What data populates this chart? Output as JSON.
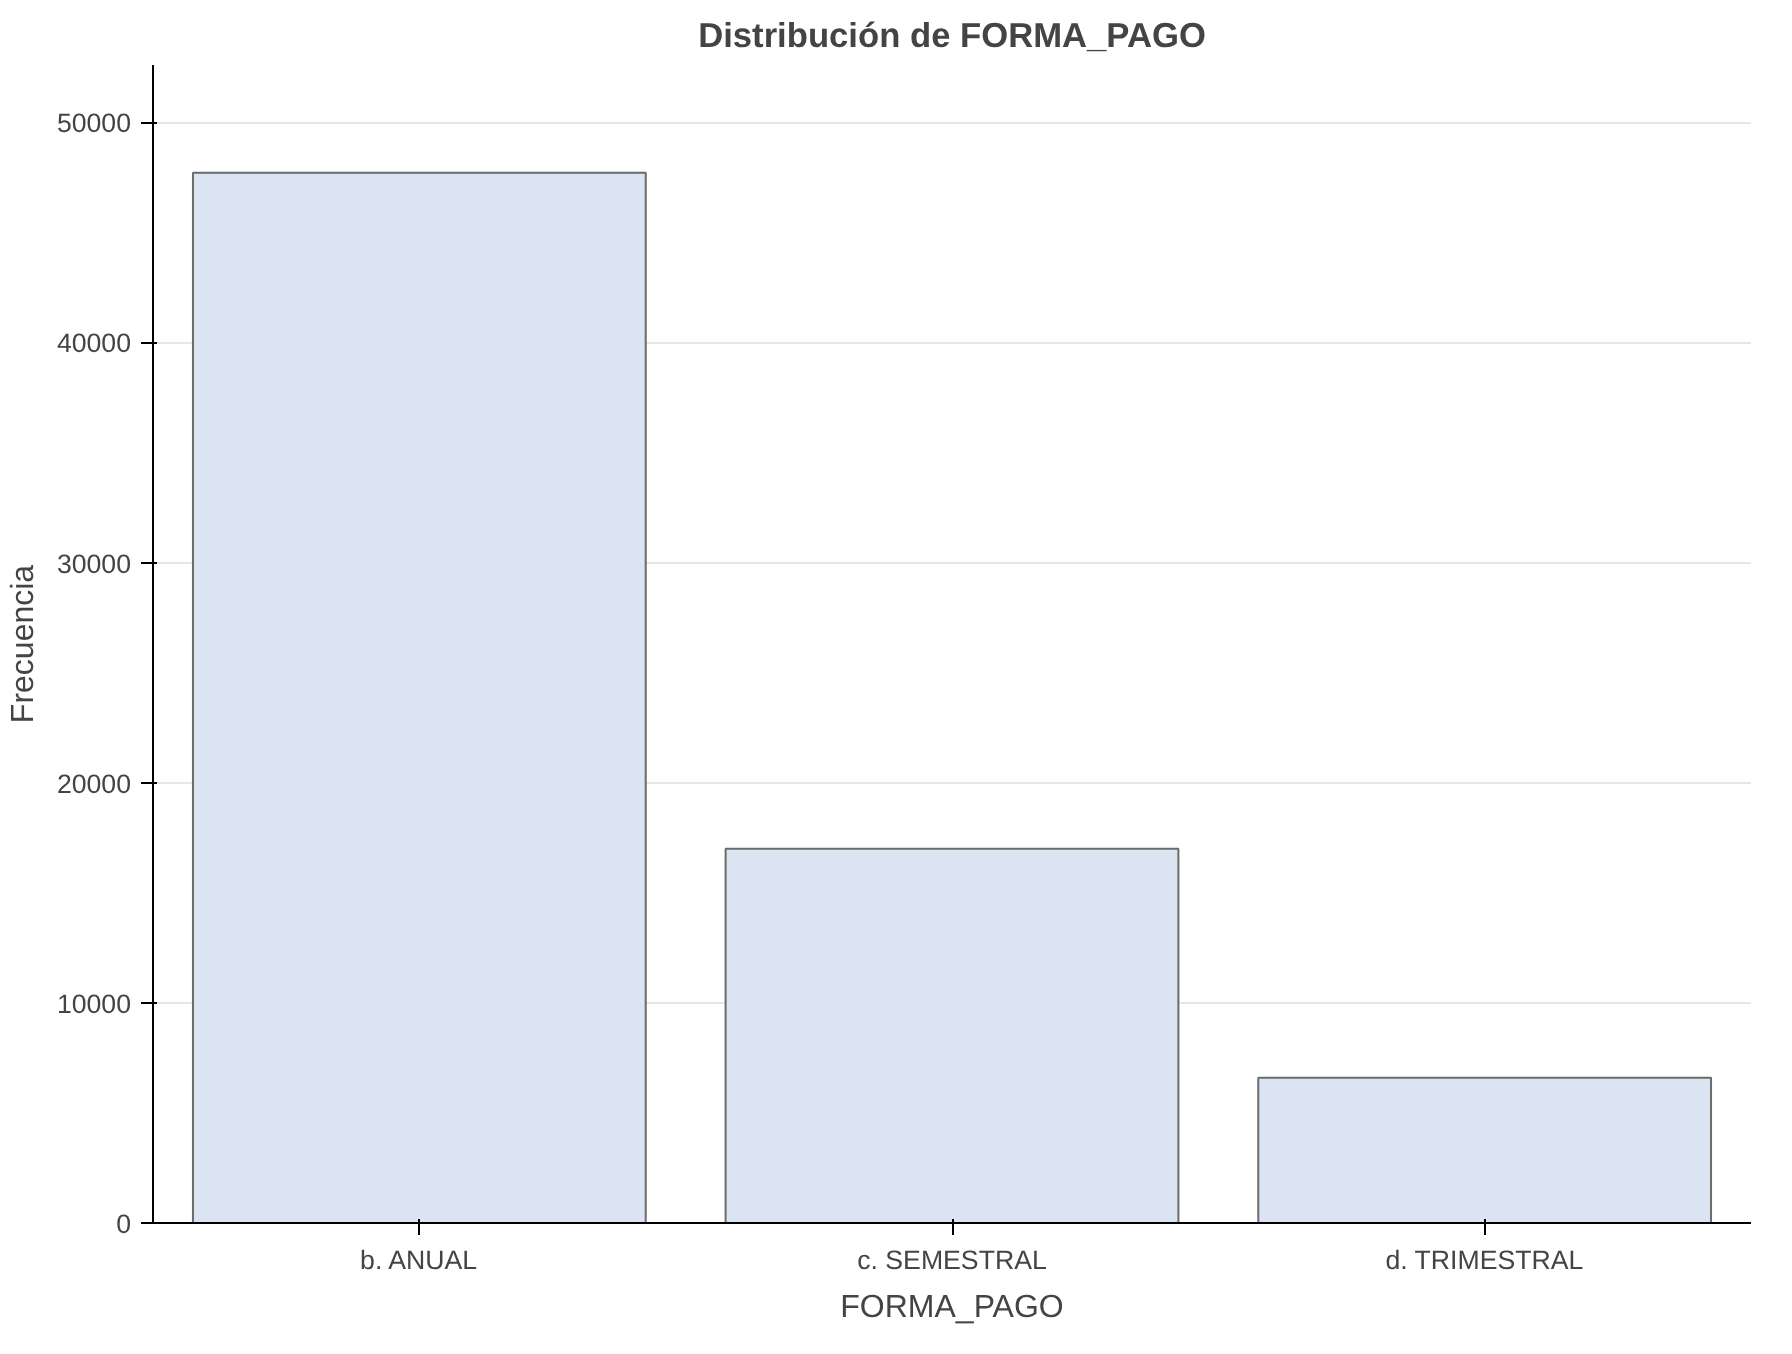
{
  "chart_data": {
    "type": "bar",
    "title": "Distribución de FORMA_PAGO",
    "xlabel": "FORMA_PAGO",
    "ylabel": "Frecuencia",
    "categories": [
      "b. ANUAL",
      "c. SEMESTRAL",
      "d. TRIMESTRAL"
    ],
    "values": [
      47700,
      17000,
      6600
    ],
    "color": "#dbe5f1",
    "ylim": [
      0,
      52600
    ],
    "yticks": [
      0,
      10000,
      20000,
      30000,
      40000,
      50000
    ],
    "grid": "y"
  }
}
